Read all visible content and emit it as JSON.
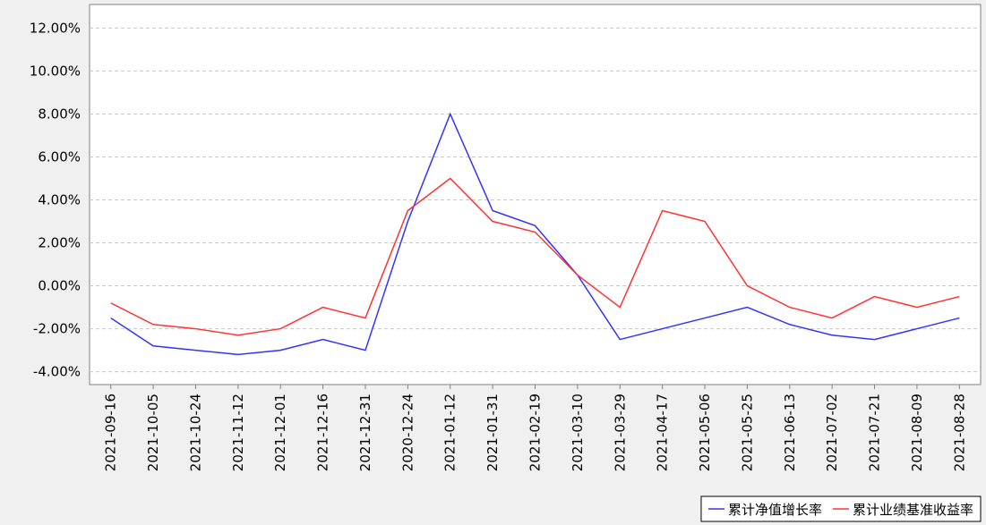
{
  "chart_data": {
    "type": "line",
    "categories": [
      "2021-09-16",
      "2021-10-05",
      "2021-10-24",
      "2021-11-12",
      "2021-12-01",
      "2021-12-16",
      "2021-12-31",
      "2020-12-24",
      "2021-01-12",
      "2021-01-31",
      "2021-02-19",
      "2021-03-10",
      "2021-03-29",
      "2021-04-17",
      "2021-05-06",
      "2021-05-25",
      "2021-06-13",
      "2021-07-02",
      "2021-07-21",
      "2021-08-09",
      "2021-08-28"
    ],
    "series": [
      {
        "name": "累计净值增长率",
        "color": "#3333ff",
        "values": [
          -1.5,
          -2.8,
          -3.0,
          -3.2,
          -3.0,
          -2.5,
          -3.0,
          3.0,
          8.0,
          3.5,
          2.8,
          0.5,
          -2.5,
          -2.0,
          -1.5,
          -1.0,
          -1.8,
          -2.3,
          -2.5,
          -2.0,
          -1.5
        ]
      },
      {
        "name": "累计业绩基准收益率",
        "color": "#ff3333",
        "values": [
          -0.8,
          -1.8,
          -2.0,
          -2.3,
          -2.0,
          -1.0,
          -1.5,
          3.5,
          5.0,
          3.0,
          2.5,
          0.5,
          -1.0,
          3.5,
          3.0,
          0.0,
          -1.0,
          -1.5,
          -0.5,
          -1.0,
          -0.5
        ]
      }
    ],
    "ylim": [
      -4.6,
      13.1
    ],
    "yticks": [
      {
        "value": -4,
        "label": "-4.00%"
      },
      {
        "value": -2,
        "label": "-2.00%"
      },
      {
        "value": 0,
        "label": "0.00%"
      },
      {
        "value": 2,
        "label": "2.00%"
      },
      {
        "value": 4,
        "label": "4.00%"
      },
      {
        "value": 6,
        "label": "6.00%"
      },
      {
        "value": 8,
        "label": "8.00%"
      },
      {
        "value": 10,
        "label": "10.00%"
      },
      {
        "value": 12,
        "label": "12.00%"
      }
    ],
    "grid": true,
    "legend": "bottom-right"
  }
}
